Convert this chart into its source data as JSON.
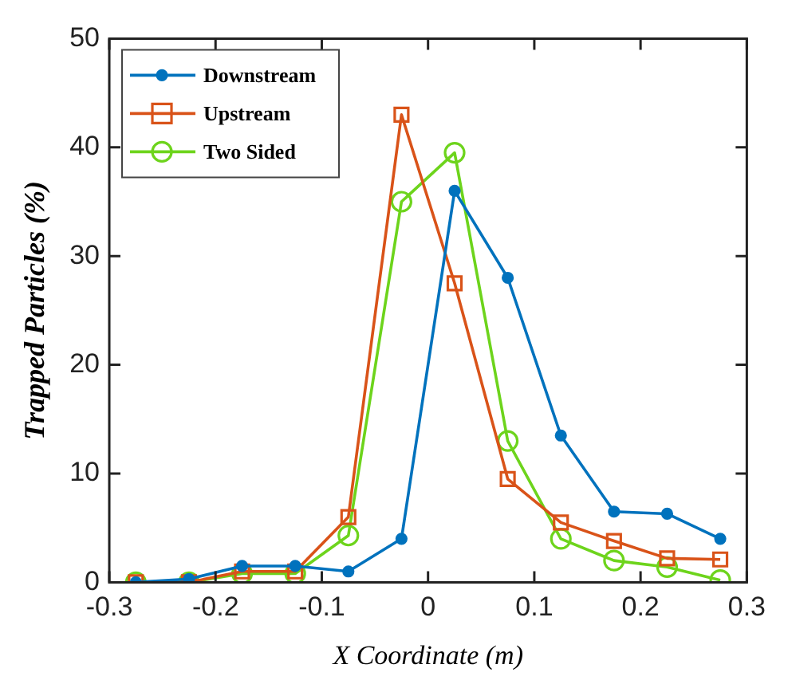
{
  "chart_data": {
    "type": "line",
    "xlabel": "X Coordinate (m)",
    "ylabel": "Trapped Particles (%)",
    "x": [
      -0.275,
      -0.225,
      -0.175,
      -0.125,
      -0.075,
      -0.025,
      0.025,
      0.075,
      0.125,
      0.175,
      0.225,
      0.275
    ],
    "series": [
      {
        "name": "Downstream",
        "color": "#0072bd",
        "marker": "circle",
        "values": [
          0,
          0.3,
          1.5,
          1.5,
          1,
          4,
          36,
          28,
          13.5,
          6.5,
          6.3,
          4
        ]
      },
      {
        "name": "Upstream",
        "color": "#d95319",
        "marker": "square",
        "values": [
          0,
          0,
          1,
          1,
          6,
          43,
          27.5,
          9.5,
          5.5,
          3.8,
          2.2,
          2.1
        ]
      },
      {
        "name": "Two Sided",
        "color": "#6dd41c",
        "marker": "circle",
        "values": [
          0,
          0,
          0.8,
          0.8,
          4.3,
          35,
          39.5,
          13,
          4,
          2,
          1.4,
          0.2
        ]
      }
    ],
    "xlim": [
      -0.3,
      0.3
    ],
    "xticks": [
      -0.3,
      -0.2,
      -0.1,
      0,
      0.1,
      0.2,
      0.3
    ],
    "ylim": [
      0,
      50
    ],
    "yticks": [
      0,
      10,
      20,
      30,
      40,
      50
    ],
    "grid": false,
    "legend": "top left",
    "line_style": "solid"
  }
}
